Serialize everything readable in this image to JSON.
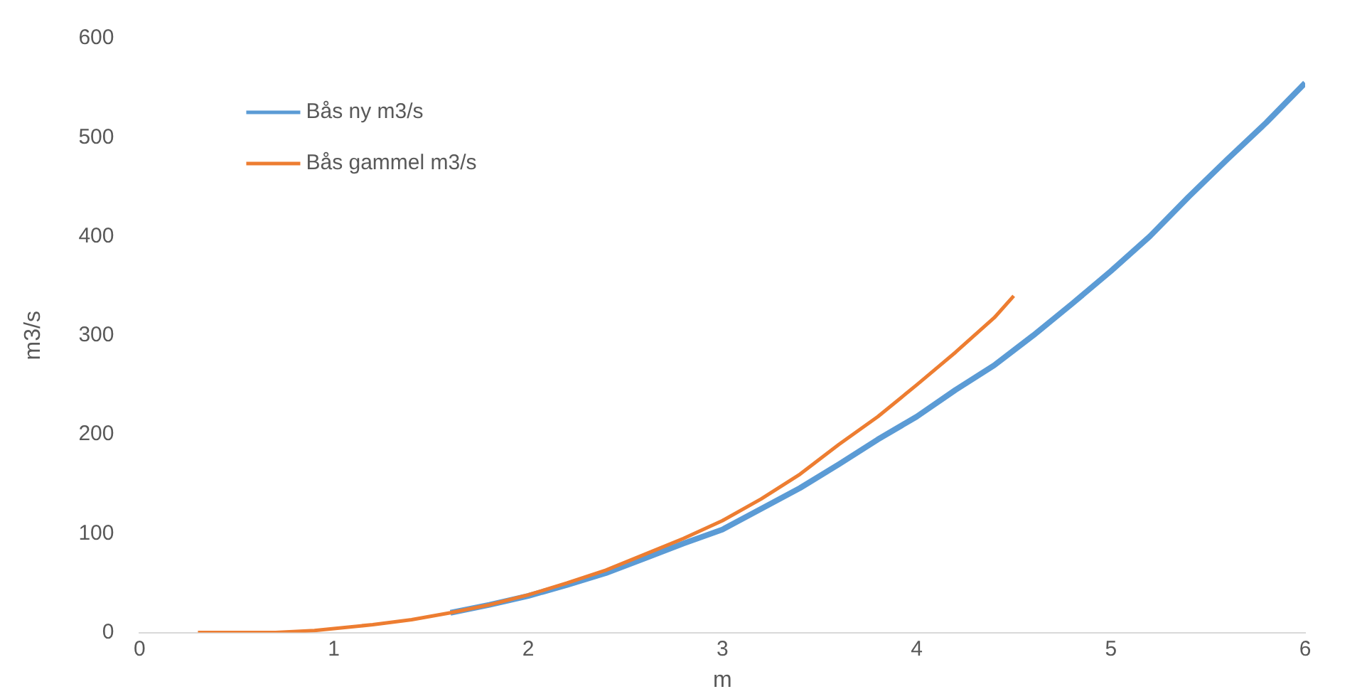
{
  "chart_data": {
    "type": "line",
    "xlabel": "m",
    "ylabel": "m3/s",
    "xlim": [
      0,
      6
    ],
    "xticks": [
      0,
      1,
      2,
      3,
      4,
      5,
      6
    ],
    "ylim": [
      0,
      600
    ],
    "yticks": [
      0,
      100,
      200,
      300,
      400,
      500,
      600
    ],
    "grid": false,
    "legend": "top left",
    "marker": "none",
    "line_style": "solid",
    "series": [
      {
        "name": "Bås ny m3/s",
        "color": "#5b9bd5",
        "x": [
          1.6,
          1.8,
          2.0,
          2.2,
          2.4,
          2.6,
          2.8,
          3.0,
          3.2,
          3.4,
          3.6,
          3.8,
          4.0,
          4.2,
          4.4,
          4.6,
          4.8,
          5.0,
          5.2,
          5.4,
          5.6,
          5.8,
          6.0
        ],
        "values": [
          20,
          28,
          37,
          48,
          60,
          75,
          90,
          104,
          125,
          146,
          170,
          195,
          218,
          245,
          270,
          300,
          332,
          365,
          400,
          440,
          478,
          515,
          555
        ]
      },
      {
        "name": "Bås gammel m3/s",
        "color": "#ed7d31",
        "x": [
          0.3,
          0.5,
          0.7,
          0.9,
          1.0,
          1.2,
          1.4,
          1.6,
          1.8,
          2.0,
          2.2,
          2.4,
          2.6,
          2.8,
          3.0,
          3.2,
          3.4,
          3.6,
          3.8,
          4.0,
          4.2,
          4.4,
          4.5
        ],
        "values": [
          0,
          0,
          0,
          2,
          4,
          8,
          13,
          20,
          28,
          38,
          50,
          63,
          79,
          95,
          113,
          135,
          160,
          190,
          218,
          250,
          283,
          318,
          340
        ]
      }
    ]
  }
}
